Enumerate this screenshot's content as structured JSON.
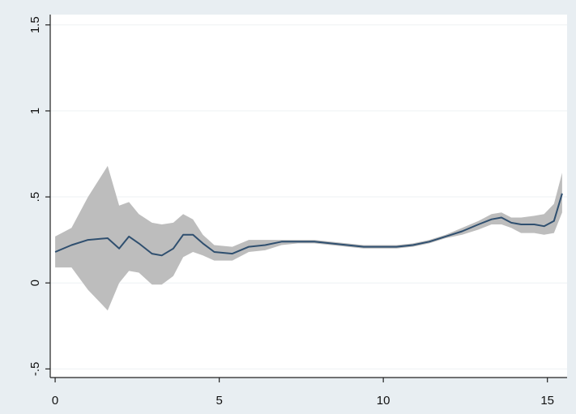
{
  "chart_data": {
    "type": "line",
    "title": "",
    "xlabel": "",
    "ylabel": "",
    "xlim": [
      0,
      15.5
    ],
    "ylim": [
      -0.5,
      1.5
    ],
    "x_ticks": [
      0,
      5,
      10,
      15
    ],
    "x_tick_labels": [
      "0",
      "5",
      "10",
      "15"
    ],
    "y_ticks": [
      -0.5,
      0,
      0.5,
      1,
      1.5
    ],
    "y_tick_labels": [
      "-.5",
      "0",
      ".5",
      "1",
      "1.5"
    ],
    "grid": true,
    "legend": "none",
    "colors": {
      "line": "#2f4f6f",
      "band": "#bdbdbd",
      "grid": "#eef1f3",
      "outer_background": "#e8eef2",
      "plot_background": "#ffffff",
      "axis": "#222222"
    },
    "series": [
      {
        "type": "line",
        "x": [
          0,
          0.5,
          1,
          1.6,
          1.95,
          2.25,
          2.55,
          2.95,
          3.25,
          3.6,
          3.9,
          4.2,
          4.5,
          4.85,
          5.4,
          5.9,
          6.4,
          6.9,
          7.4,
          7.9,
          8.4,
          8.9,
          9.4,
          9.9,
          10.4,
          10.9,
          11.4,
          11.9,
          12.4,
          12.9,
          13.3,
          13.6,
          13.9,
          14.2,
          14.6,
          14.9,
          15.2,
          15.45
        ],
        "y": [
          0.18,
          0.22,
          0.25,
          0.26,
          0.2,
          0.27,
          0.23,
          0.17,
          0.16,
          0.2,
          0.28,
          0.28,
          0.23,
          0.18,
          0.17,
          0.21,
          0.22,
          0.24,
          0.24,
          0.24,
          0.23,
          0.22,
          0.21,
          0.21,
          0.21,
          0.22,
          0.24,
          0.27,
          0.3,
          0.34,
          0.37,
          0.38,
          0.35,
          0.34,
          0.34,
          0.33,
          0.36,
          0.52
        ]
      },
      {
        "type": "band",
        "x": [
          0,
          0.5,
          1,
          1.6,
          1.95,
          2.25,
          2.55,
          2.95,
          3.25,
          3.6,
          3.9,
          4.2,
          4.5,
          4.85,
          5.4,
          5.9,
          6.4,
          6.9,
          7.4,
          7.9,
          8.4,
          8.9,
          9.4,
          9.9,
          10.4,
          10.9,
          11.4,
          11.9,
          12.4,
          12.9,
          13.3,
          13.6,
          13.9,
          14.2,
          14.6,
          14.9,
          15.2,
          15.45
        ],
        "upper": [
          0.27,
          0.32,
          0.5,
          0.68,
          0.45,
          0.47,
          0.4,
          0.35,
          0.34,
          0.35,
          0.4,
          0.37,
          0.28,
          0.22,
          0.21,
          0.25,
          0.25,
          0.25,
          0.25,
          0.25,
          0.24,
          0.23,
          0.22,
          0.22,
          0.22,
          0.23,
          0.25,
          0.28,
          0.32,
          0.36,
          0.4,
          0.41,
          0.38,
          0.38,
          0.39,
          0.4,
          0.46,
          0.64
        ],
        "lower": [
          0.09,
          0.09,
          -0.04,
          -0.16,
          0.0,
          0.07,
          0.06,
          -0.01,
          -0.01,
          0.04,
          0.15,
          0.18,
          0.16,
          0.13,
          0.13,
          0.18,
          0.19,
          0.22,
          0.23,
          0.23,
          0.22,
          0.21,
          0.2,
          0.2,
          0.2,
          0.21,
          0.23,
          0.26,
          0.28,
          0.31,
          0.34,
          0.34,
          0.32,
          0.29,
          0.29,
          0.28,
          0.29,
          0.41
        ]
      }
    ]
  }
}
